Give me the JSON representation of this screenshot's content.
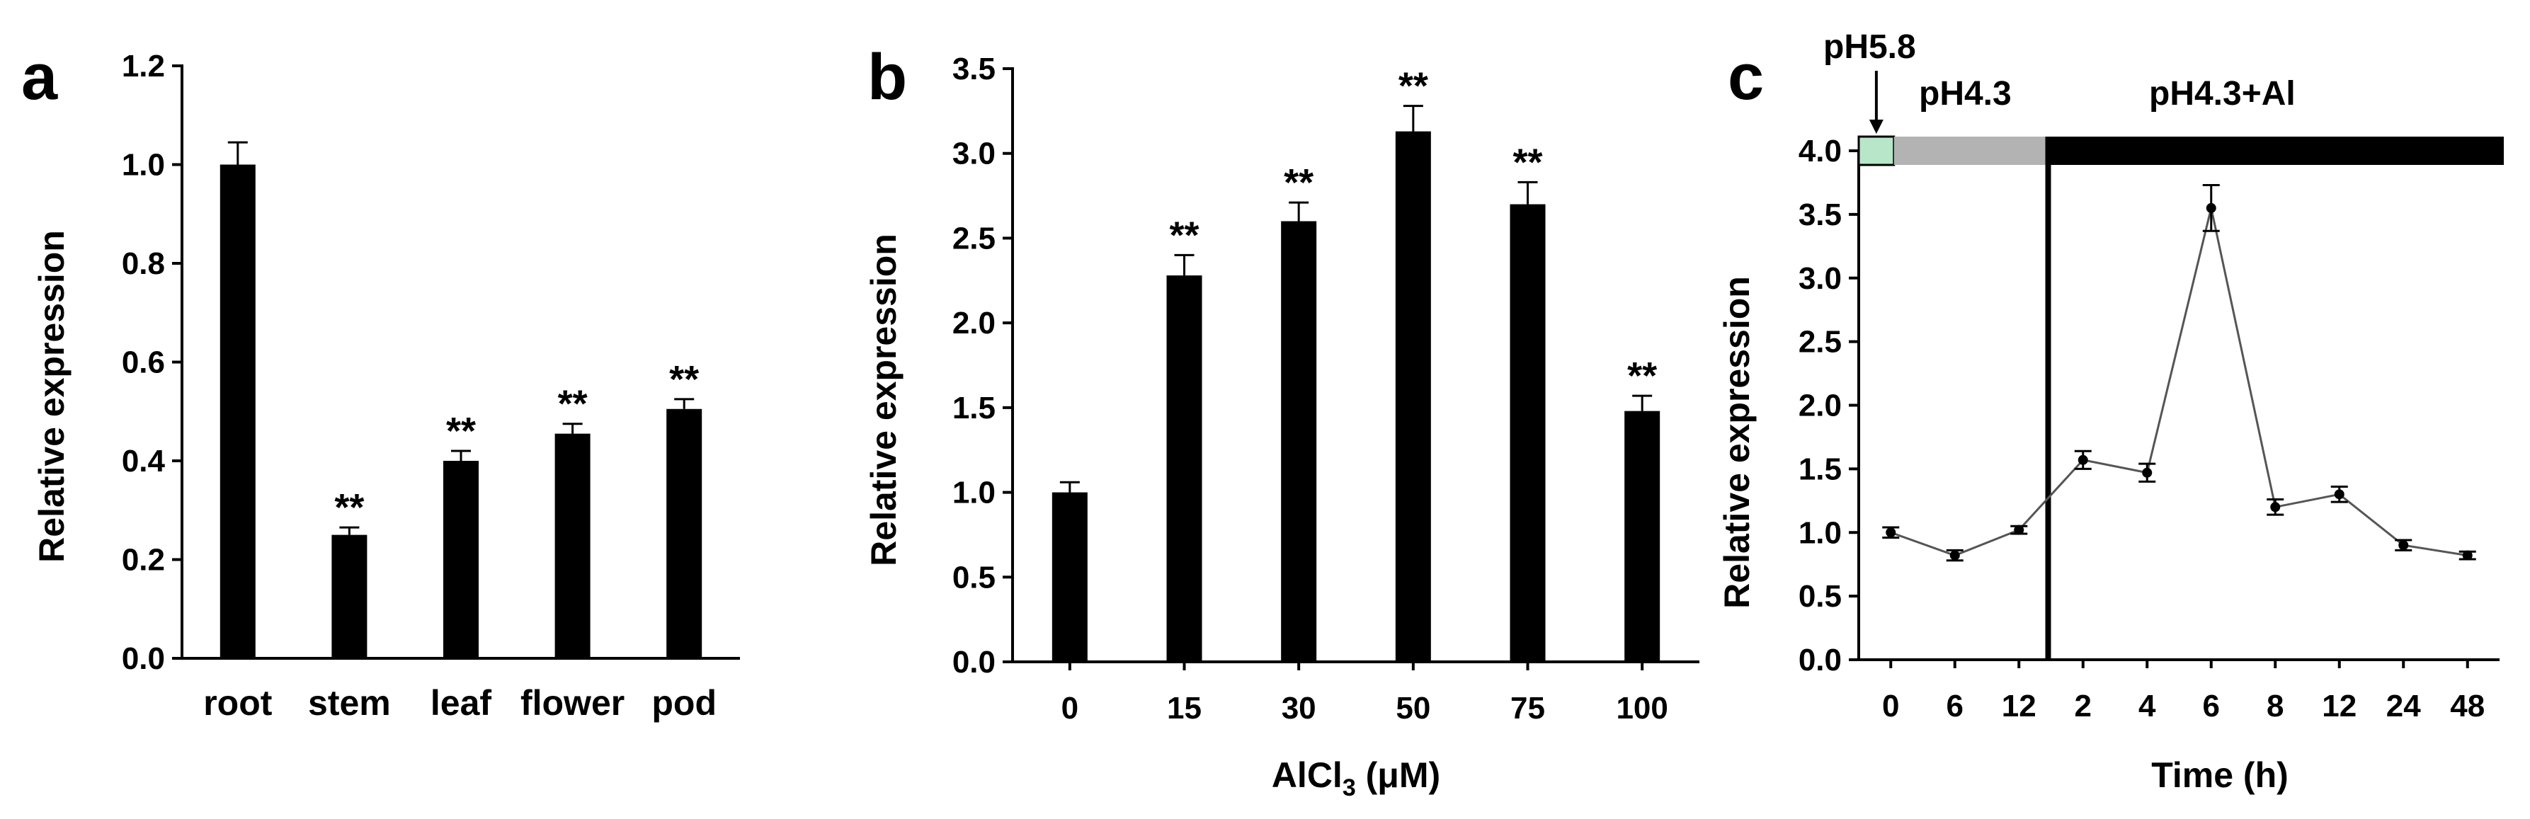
{
  "colors": {
    "bar": "#000000",
    "ph58_box": "#b8e6c8",
    "ph43_band": "#b3b3b3",
    "al_band": "#000000",
    "line": "#555555"
  },
  "chart_data": [
    {
      "panel": "a",
      "type": "bar",
      "categories": [
        "root",
        "stem",
        "leaf",
        "flower",
        "pod"
      ],
      "values": [
        1.0,
        0.25,
        0.4,
        0.455,
        0.505
      ],
      "errors": [
        0.045,
        0.015,
        0.02,
        0.02,
        0.02
      ],
      "annotations": [
        "",
        "**",
        "**",
        "**",
        "**"
      ],
      "title": "",
      "xlabel": "",
      "ylabel": "Relative expression",
      "ylim": [
        0,
        1.2
      ],
      "yticks": [
        "0.0",
        "0.2",
        "0.4",
        "0.6",
        "0.8",
        "1.0",
        "1.2"
      ],
      "grid": false
    },
    {
      "panel": "b",
      "type": "bar",
      "categories": [
        "0",
        "15",
        "30",
        "50",
        "75",
        "100"
      ],
      "values": [
        1.0,
        2.28,
        2.6,
        3.13,
        2.7,
        1.48
      ],
      "errors": [
        0.06,
        0.12,
        0.11,
        0.15,
        0.13,
        0.09
      ],
      "annotations": [
        "",
        "**",
        "**",
        "**",
        "**",
        "**"
      ],
      "title": "",
      "xlabel": "AlCl",
      "xlabel_sub": "3",
      "xlabel_unit": " (μM)",
      "ylabel": "Relative expression",
      "ylim": [
        0,
        3.5
      ],
      "yticks": [
        "0.0",
        "0.5",
        "1.0",
        "1.5",
        "2.0",
        "2.5",
        "3.0",
        "3.5"
      ],
      "grid": false
    },
    {
      "panel": "c",
      "type": "line",
      "categories": [
        "0",
        "6",
        "12",
        "2",
        "4",
        "6",
        "8",
        "12",
        "24",
        "48"
      ],
      "values": [
        1.0,
        0.82,
        1.02,
        1.57,
        1.47,
        3.55,
        1.2,
        1.3,
        0.9,
        0.82
      ],
      "errors": [
        0.04,
        0.04,
        0.03,
        0.07,
        0.07,
        0.18,
        0.06,
        0.06,
        0.04,
        0.03
      ],
      "title": "",
      "xlabel": "Time (h)",
      "ylabel": "Relative expression",
      "ylim": [
        0,
        4.0
      ],
      "yticks": [
        "0.0",
        "0.5",
        "1.0",
        "1.5",
        "2.0",
        "2.5",
        "3.0",
        "3.5",
        "4.0"
      ],
      "phases": [
        "pH5.8",
        "pH4.3",
        "pH4.3+Al"
      ],
      "grid": false
    }
  ]
}
